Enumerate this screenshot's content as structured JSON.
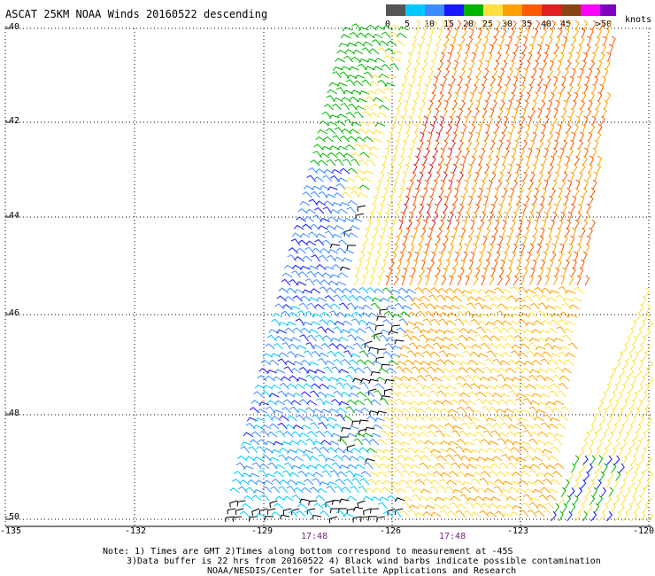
{
  "title": "ASCAT 25KM NOAA Winds 20160522 descending",
  "colorbar": {
    "bins": [
      {
        "label": "0",
        "color": "#555555"
      },
      {
        "label": "5",
        "color": "#00c8ff"
      },
      {
        "label": "10",
        "color": "#3c8cff"
      },
      {
        "label": "15",
        "color": "#1818ff"
      },
      {
        "label": "20",
        "color": "#00b400"
      },
      {
        "label": "25",
        "color": "#ffe040"
      },
      {
        "label": "30",
        "color": "#ffa000"
      },
      {
        "label": "35",
        "color": "#ff5a00"
      },
      {
        "label": "40",
        "color": "#e02020"
      },
      {
        "label": "45",
        "color": "#8b4513"
      },
      {
        "label": ">50",
        "color": "#ff00ff"
      },
      {
        "label": "",
        "color": "#8000c0"
      }
    ],
    "units": "knots"
  },
  "lat_labels": [
    "-40",
    "-42",
    "-44",
    "-46",
    "-48",
    "-50"
  ],
  "lon_labels": [
    "-135",
    "-132",
    "-129",
    "-126",
    "-123",
    "-120"
  ],
  "time_labels": [
    "17:48",
    "17:48"
  ],
  "notes": [
    "Note: 1) Times are GMT 2)Times along bottom correspond to measurement at -45S",
    "3)Data buffer is 22 hrs from 20160522 4) Black wind barbs indicate possible contamination",
    "NOAA/NESDIS/Center for Satellite Applications and Research"
  ]
}
